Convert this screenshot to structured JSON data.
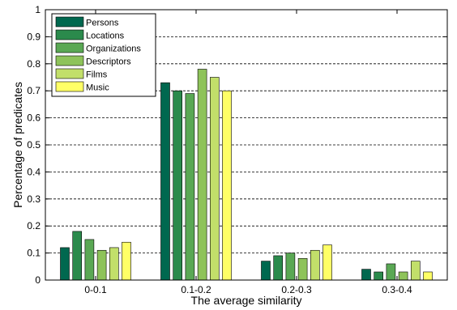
{
  "chart_data": {
    "type": "bar",
    "xlabel": "The average similarity",
    "ylabel": "Percentage of predicates",
    "categories": [
      "0-0.1",
      "0.1-0.2",
      "0.2-0.3",
      "0.3-0.4"
    ],
    "ylim": [
      0,
      1
    ],
    "yticks": [
      "0",
      "0.1",
      "0.2",
      "0.3",
      "0.4",
      "0.5",
      "0.6",
      "0.7",
      "0.8",
      "0.9",
      "1"
    ],
    "grid": "horizontal dashed",
    "legend_position": "top-left",
    "series": [
      {
        "name": "Persons",
        "color": "#00684f",
        "values": [
          0.12,
          0.73,
          0.07,
          0.04
        ]
      },
      {
        "name": "Locations",
        "color": "#2b8a4c",
        "values": [
          0.18,
          0.7,
          0.09,
          0.03
        ]
      },
      {
        "name": "Organizations",
        "color": "#5aa854",
        "values": [
          0.15,
          0.69,
          0.1,
          0.06
        ]
      },
      {
        "name": "Descriptors",
        "color": "#8ec35a",
        "values": [
          0.11,
          0.78,
          0.08,
          0.03
        ]
      },
      {
        "name": "Films",
        "color": "#c2df6a",
        "values": [
          0.12,
          0.75,
          0.11,
          0.07
        ]
      },
      {
        "name": "Music",
        "color": "#ffff66",
        "values": [
          0.14,
          0.7,
          0.13,
          0.03
        ]
      }
    ]
  }
}
